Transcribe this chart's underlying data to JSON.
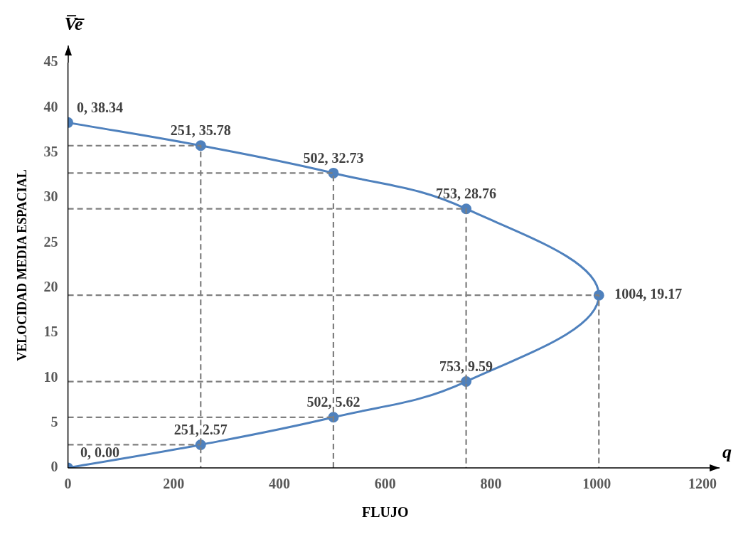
{
  "chart_data": {
    "type": "line",
    "xlabel": "FLUJO",
    "ylabel": "VELOCIDAD MEDIA ESPACIAL",
    "annotations": [
      "V̅e̅",
      "q"
    ],
    "xlim": [
      0,
      1200
    ],
    "xticks": [
      0,
      200,
      400,
      600,
      800,
      1000,
      1200
    ],
    "ylim": [
      0,
      45
    ],
    "yticks": [
      0,
      5,
      10,
      15,
      20,
      25,
      30,
      35,
      40,
      45
    ],
    "grid": false,
    "legend": false,
    "series": [
      {
        "color": "#7f7f7f",
        "line_style": "dashed",
        "marker": "none",
        "x": [
          0,
          251,
          251
        ],
        "values": [
          35.78,
          35.78,
          0
        ]
      },
      {
        "color": "#7f7f7f",
        "line_style": "dashed",
        "marker": "none",
        "x": [
          0,
          502,
          502
        ],
        "values": [
          32.73,
          32.73,
          0
        ]
      },
      {
        "color": "#7f7f7f",
        "line_style": "dashed",
        "marker": "none",
        "x": [
          0,
          753,
          753
        ],
        "values": [
          28.76,
          28.76,
          0
        ]
      },
      {
        "color": "#7f7f7f",
        "line_style": "dashed",
        "marker": "none",
        "x": [
          0,
          1004,
          1004
        ],
        "values": [
          19.17,
          19.17,
          0
        ]
      },
      {
        "color": "#7f7f7f",
        "line_style": "dashed",
        "marker": "none",
        "x": [
          0,
          753
        ],
        "values": [
          9.59,
          9.59
        ]
      },
      {
        "color": "#7f7f7f",
        "line_style": "dashed",
        "marker": "none",
        "x": [
          0,
          502
        ],
        "values": [
          5.62,
          5.62
        ]
      },
      {
        "color": "#7f7f7f",
        "line_style": "dashed",
        "marker": "none",
        "x": [
          0,
          251
        ],
        "values": [
          2.57,
          2.57
        ]
      },
      {
        "color": "#4f81bd",
        "line_style": "solid",
        "marker": "circle",
        "x": [
          0,
          251,
          502,
          753,
          1004,
          753,
          502,
          251,
          0
        ],
        "values": [
          38.34,
          35.78,
          32.73,
          28.76,
          19.17,
          9.59,
          5.62,
          2.57,
          0
        ],
        "value_labels": [
          "0, 38.34",
          "251, 35.78",
          "502, 32.73",
          "753, 28.76",
          "1004, 19.17",
          "753, 9.59",
          "502, 5.62",
          "251, 2.57",
          "0, 0.00"
        ]
      }
    ]
  }
}
